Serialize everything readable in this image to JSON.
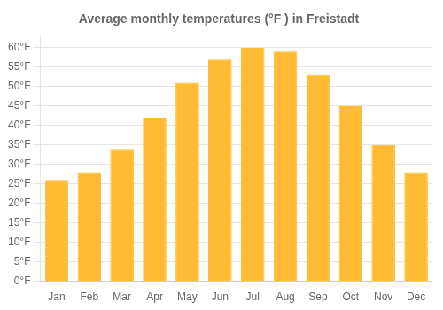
{
  "chart_data": {
    "type": "bar",
    "title": "Average monthly temperatures (°F ) in Freistadt",
    "categories": [
      "Jan",
      "Feb",
      "Mar",
      "Apr",
      "May",
      "Jun",
      "Jul",
      "Aug",
      "Sep",
      "Oct",
      "Nov",
      "Dec"
    ],
    "values": [
      26,
      28,
      34,
      42,
      51,
      57,
      60,
      59,
      53,
      45,
      35,
      28
    ],
    "color": "#FFBB33",
    "ylim": [
      0,
      63
    ],
    "yticks": [
      {
        "value": 0,
        "label": "0°F"
      },
      {
        "value": 5,
        "label": "5°F"
      },
      {
        "value": 10,
        "label": "10°F"
      },
      {
        "value": 15,
        "label": "15°F"
      },
      {
        "value": 20,
        "label": "20°F"
      },
      {
        "value": 25,
        "label": "25°F"
      },
      {
        "value": 30,
        "label": "30°F"
      },
      {
        "value": 35,
        "label": "35°F"
      },
      {
        "value": 40,
        "label": "40°F"
      },
      {
        "value": 45,
        "label": "45°F"
      },
      {
        "value": 50,
        "label": "50°F"
      },
      {
        "value": 55,
        "label": "55°F"
      },
      {
        "value": 60,
        "label": "60°F"
      }
    ],
    "grid": true
  }
}
